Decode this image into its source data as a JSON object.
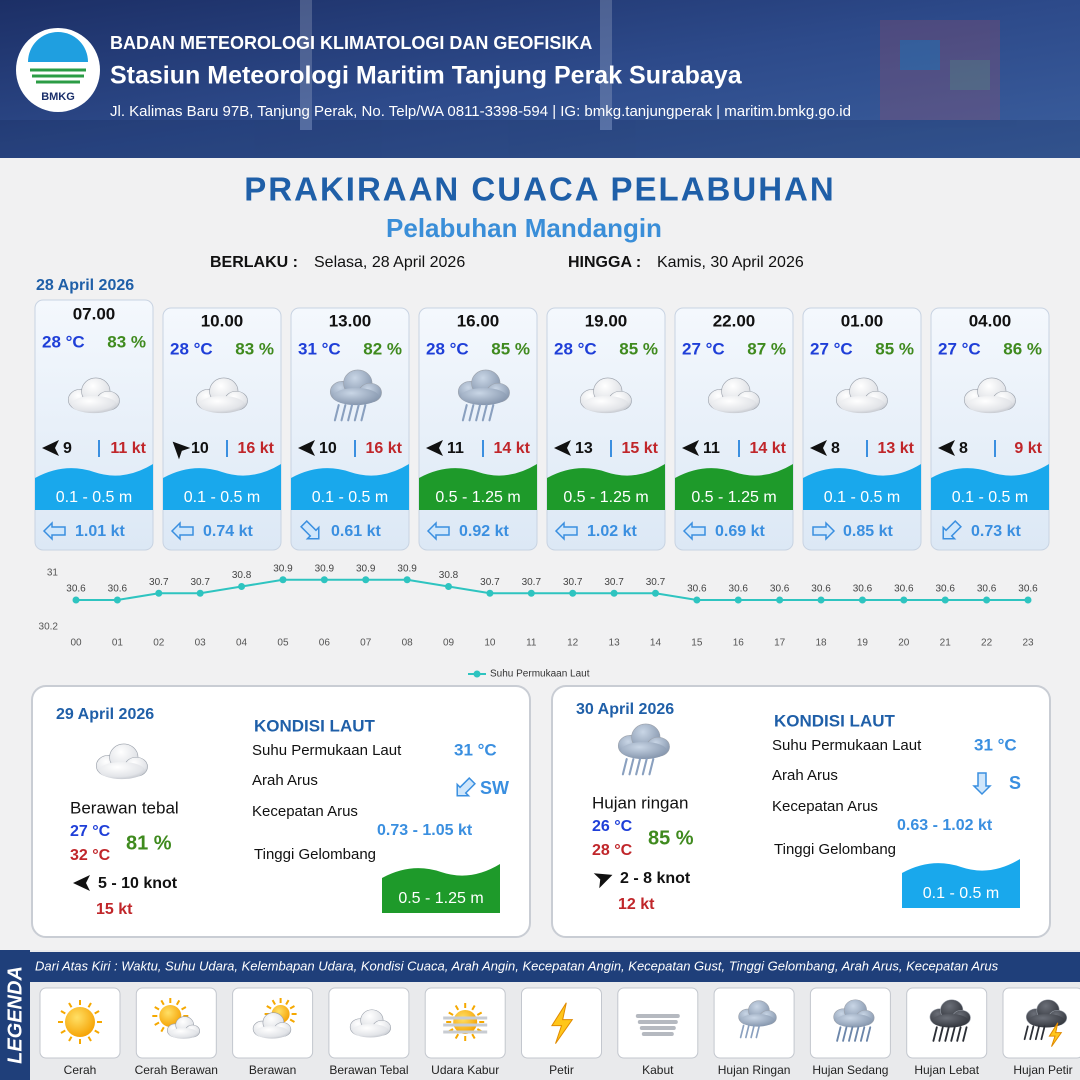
{
  "header": {
    "logo": "BMKG",
    "agency": "BADAN METEOROLOGI KLIMATOLOGI DAN GEOFISIKA",
    "station": "Stasiun Meteorologi Maritim Tanjung Perak Surabaya",
    "address": "Jl. Kalimas Baru 97B, Tanjung Perak, No. Telp/WA 0811-3398-594 | IG: bmkg.tanjungperak | maritim.bmkg.go.id"
  },
  "title": "PRAKIRAAN CUACA PELABUHAN",
  "subtitle": "Pelabuhan Mandangin",
  "validity": {
    "from_label": "BERLAKU :",
    "from": "Selasa, 28 April 2026",
    "to_label": "HINGGA :",
    "to": "Kamis, 30 April 2026"
  },
  "first_day": "28 April 2026",
  "forecasts": [
    {
      "time": "07.00",
      "temperature": "28 °C",
      "humidity": "83 %",
      "wind_speed": "9",
      "gust": "11 kt",
      "wave_height": "0.1 - 0.5 m",
      "current_speed": "1.01 kt"
    },
    {
      "time": "10.00",
      "temperature": "28 °C",
      "humidity": "83 %",
      "wind_speed": "10",
      "gust": "16 kt",
      "wave_height": "0.1 - 0.5 m",
      "current_speed": "0.74 kt"
    },
    {
      "time": "13.00",
      "temperature": "31 °C",
      "humidity": "82 %",
      "wind_speed": "10",
      "gust": "16 kt",
      "wave_height": "0.1 - 0.5 m",
      "current_speed": "0.61 kt"
    },
    {
      "time": "16.00",
      "temperature": "28 °C",
      "humidity": "85 %",
      "wind_speed": "11",
      "gust": "14 kt",
      "wave_height": "0.5 - 1.25 m",
      "current_speed": "0.92 kt"
    },
    {
      "time": "19.00",
      "temperature": "28 °C",
      "humidity": "85 %",
      "wind_speed": "13",
      "gust": "15 kt",
      "wave_height": "0.5 - 1.25 m",
      "current_speed": "1.02 kt"
    },
    {
      "time": "22.00",
      "temperature": "27 °C",
      "humidity": "87 %",
      "wind_speed": "11",
      "gust": "14 kt",
      "wave_height": "0.5 - 1.25 m",
      "current_speed": "0.69 kt"
    },
    {
      "time": "01.00",
      "temperature": "27 °C",
      "humidity": "85 %",
      "wind_speed": "8",
      "gust": "13 kt",
      "wave_height": "0.1 - 0.5 m",
      "current_speed": "0.85 kt"
    },
    {
      "time": "04.00",
      "temperature": "27 °C",
      "humidity": "86 %",
      "wind_speed": "8",
      "gust": "9 kt",
      "wave_height": "0.1 - 0.5 m",
      "current_speed": "0.73 kt"
    }
  ],
  "chart_data": {
    "type": "line",
    "categories": [
      "00",
      "01",
      "02",
      "03",
      "04",
      "05",
      "06",
      "07",
      "08",
      "09",
      "10",
      "11",
      "12",
      "13",
      "14",
      "15",
      "16",
      "17",
      "18",
      "19",
      "20",
      "21",
      "22",
      "23"
    ],
    "series": [
      {
        "name": "Suhu Permukaan Laut",
        "color": "#2ec4c0",
        "values": [
          30.6,
          30.6,
          30.7,
          30.7,
          30.8,
          30.9,
          30.9,
          30.9,
          30.9,
          30.8,
          30.7,
          30.7,
          30.7,
          30.7,
          30.7,
          30.6,
          30.6,
          30.6,
          30.6,
          30.6,
          30.6,
          30.6,
          30.6,
          30.6
        ]
      }
    ],
    "ylim": [
      30.2,
      31
    ],
    "yticks": [
      30.2,
      31
    ],
    "legend": "bottom"
  },
  "days": [
    {
      "date": "29 April 2026",
      "condition": "Berawan tebal",
      "temp_min": "27 °C",
      "temp_max": "32 °C",
      "humidity": "81 %",
      "wind": "5  - 10 knot",
      "gust": "15 kt",
      "sea_heading": "KONDISI LAUT",
      "sst_label": "Suhu Permukaan Laut",
      "sst": "31 °C",
      "current_dir_label": "Arah Arus",
      "current_dir": "SW",
      "current_speed_label": "Kecepatan Arus",
      "current_speed": "0.73  - 1.05 kt",
      "wave_label": "Tinggi Gelombang",
      "wave": "0.5 - 1.25 m"
    },
    {
      "date": "30 April 2026",
      "condition": "Hujan ringan",
      "temp_min": "26 °C",
      "temp_max": "28 °C",
      "humidity": "85 %",
      "wind": "2  - 8 knot",
      "gust": "12 kt",
      "sea_heading": "KONDISI LAUT",
      "sst_label": "Suhu Permukaan Laut",
      "sst": "31 °C",
      "current_dir_label": "Arah Arus",
      "current_dir": "S",
      "current_speed_label": "Kecepatan Arus",
      "current_speed": "0.63 - 1.02 kt",
      "wave_label": "Tinggi Gelombang",
      "wave": "0.1 - 0.5 m"
    }
  ],
  "legend": {
    "title": "LEGENDA",
    "description": "Dari Atas Kiri : Waktu, Suhu Udara, Kelembapan Udara, Kondisi Cuaca, Arah Angin, Kecepatan Angin, Kecepatan Gust, Tinggi Gelombang, Arah Arus, Kecepatan Arus",
    "items": [
      "Cerah",
      "Cerah Berawan",
      "Berawan",
      "Berawan Tebal",
      "Udara Kabur",
      "Petir",
      "Kabut",
      "Hujan Ringan",
      "Hujan Sedang",
      "Hujan Lebat",
      "Hujan Petir"
    ]
  }
}
